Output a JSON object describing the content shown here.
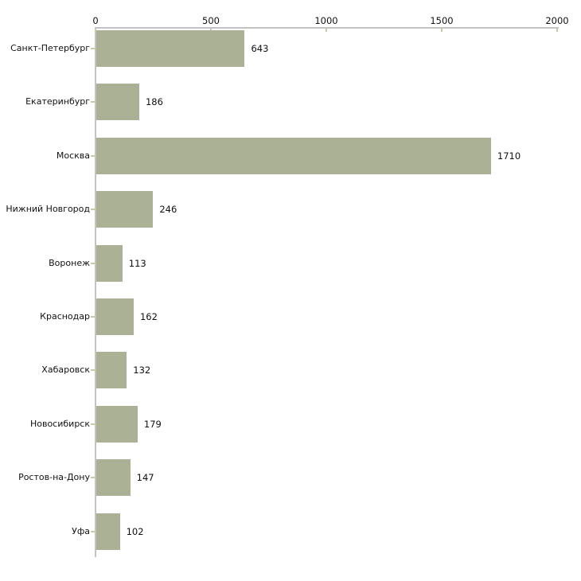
{
  "chart_data": {
    "type": "bar",
    "orientation": "horizontal",
    "title": "",
    "xlabel": "",
    "ylabel": "",
    "categories": [
      "Санкт-Петербург",
      "Екатеринбург",
      "Москва",
      "Нижний Новгород",
      "Воронеж",
      "Краснодар",
      "Хабаровск",
      "Новосибирск",
      "Ростов-на-Дону",
      "Уфа"
    ],
    "values": [
      643,
      186,
      1710,
      246,
      113,
      162,
      132,
      179,
      147,
      102
    ],
    "value_labels": [
      "643",
      "186",
      "1710",
      "246",
      "113",
      "162",
      "132",
      "179",
      "147",
      "102"
    ],
    "xlim": [
      0,
      2000
    ],
    "x_ticks": [
      0,
      500,
      1000,
      1500,
      2000
    ],
    "x_tick_labels": [
      "0",
      "500",
      "1000",
      "1500",
      "2000"
    ],
    "axis_position": "top",
    "grid": false,
    "legend": null,
    "colors": {
      "bar": "#abb194",
      "axis": "#c3c3c3",
      "tick": "#c6cba6",
      "text": "#111111",
      "background": "#ffffff"
    }
  }
}
